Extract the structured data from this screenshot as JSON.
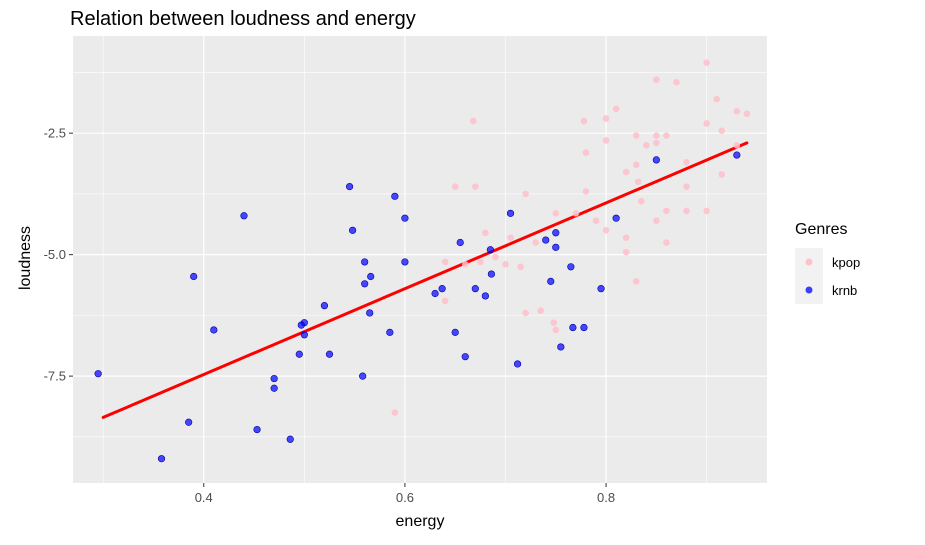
{
  "chart_data": {
    "type": "scatter",
    "title": "Relation between loudness and energy",
    "xlabel": "energy",
    "ylabel": "loudness",
    "xlim": [
      0.27,
      0.96
    ],
    "ylim": [
      -9.7,
      -0.5
    ],
    "x_ticks": [
      0.4,
      0.6,
      0.8
    ],
    "x_tick_labels": [
      "0.4",
      "0.6",
      "0.8"
    ],
    "y_ticks": [
      -2.5,
      -5.0,
      -7.5
    ],
    "y_tick_labels": [
      "-2.5",
      "-5.0",
      "-7.5"
    ],
    "grid": true,
    "legend": {
      "title": "Genres",
      "placement": "right"
    },
    "series": [
      {
        "name": "kpop",
        "color": "#ffc0cb",
        "points": [
          [
            0.85,
            -1.4
          ],
          [
            0.87,
            -1.45
          ],
          [
            0.9,
            -1.05
          ],
          [
            0.91,
            -1.8
          ],
          [
            0.93,
            -2.05
          ],
          [
            0.94,
            -2.1
          ],
          [
            0.81,
            -2.0
          ],
          [
            0.8,
            -2.2
          ],
          [
            0.778,
            -2.25
          ],
          [
            0.668,
            -2.25
          ],
          [
            0.9,
            -2.3
          ],
          [
            0.915,
            -2.45
          ],
          [
            0.85,
            -2.55
          ],
          [
            0.83,
            -2.55
          ],
          [
            0.86,
            -2.55
          ],
          [
            0.8,
            -2.65
          ],
          [
            0.84,
            -2.75
          ],
          [
            0.93,
            -2.75
          ],
          [
            0.85,
            -2.7
          ],
          [
            0.78,
            -2.9
          ],
          [
            0.83,
            -3.15
          ],
          [
            0.88,
            -3.1
          ],
          [
            0.82,
            -3.3
          ],
          [
            0.915,
            -3.35
          ],
          [
            0.832,
            -3.5
          ],
          [
            0.65,
            -3.6
          ],
          [
            0.67,
            -3.6
          ],
          [
            0.72,
            -3.75
          ],
          [
            0.78,
            -3.7
          ],
          [
            0.88,
            -3.6
          ],
          [
            0.77,
            -4.15
          ],
          [
            0.835,
            -3.9
          ],
          [
            0.75,
            -4.15
          ],
          [
            0.88,
            -4.1
          ],
          [
            0.86,
            -4.1
          ],
          [
            0.9,
            -4.1
          ],
          [
            0.79,
            -4.3
          ],
          [
            0.85,
            -4.3
          ],
          [
            0.8,
            -4.5
          ],
          [
            0.82,
            -4.65
          ],
          [
            0.86,
            -4.75
          ],
          [
            0.68,
            -4.55
          ],
          [
            0.705,
            -4.65
          ],
          [
            0.73,
            -4.75
          ],
          [
            0.64,
            -5.15
          ],
          [
            0.66,
            -5.2
          ],
          [
            0.675,
            -5.15
          ],
          [
            0.69,
            -5.05
          ],
          [
            0.7,
            -5.2
          ],
          [
            0.715,
            -5.25
          ],
          [
            0.82,
            -4.95
          ],
          [
            0.83,
            -5.55
          ],
          [
            0.64,
            -5.95
          ],
          [
            0.72,
            -6.2
          ],
          [
            0.735,
            -6.15
          ],
          [
            0.748,
            -6.4
          ],
          [
            0.59,
            -8.25
          ],
          [
            0.75,
            -6.55
          ]
        ]
      },
      {
        "name": "krnb",
        "color": "#0000ff",
        "points": [
          [
            0.93,
            -2.95
          ],
          [
            0.85,
            -3.05
          ],
          [
            0.545,
            -3.6
          ],
          [
            0.59,
            -3.8
          ],
          [
            0.705,
            -4.15
          ],
          [
            0.44,
            -4.2
          ],
          [
            0.6,
            -4.25
          ],
          [
            0.81,
            -4.25
          ],
          [
            0.548,
            -4.5
          ],
          [
            0.75,
            -4.55
          ],
          [
            0.74,
            -4.7
          ],
          [
            0.655,
            -4.75
          ],
          [
            0.75,
            -4.85
          ],
          [
            0.685,
            -4.9
          ],
          [
            0.56,
            -5.15
          ],
          [
            0.6,
            -5.15
          ],
          [
            0.765,
            -5.25
          ],
          [
            0.39,
            -5.45
          ],
          [
            0.686,
            -5.4
          ],
          [
            0.566,
            -5.45
          ],
          [
            0.56,
            -5.6
          ],
          [
            0.745,
            -5.55
          ],
          [
            0.67,
            -5.7
          ],
          [
            0.637,
            -5.7
          ],
          [
            0.795,
            -5.7
          ],
          [
            0.63,
            -5.8
          ],
          [
            0.68,
            -5.85
          ],
          [
            0.52,
            -6.05
          ],
          [
            0.565,
            -6.2
          ],
          [
            0.5,
            -6.4
          ],
          [
            0.497,
            -6.45
          ],
          [
            0.41,
            -6.55
          ],
          [
            0.767,
            -6.5
          ],
          [
            0.778,
            -6.5
          ],
          [
            0.585,
            -6.6
          ],
          [
            0.65,
            -6.6
          ],
          [
            0.5,
            -6.65
          ],
          [
            0.755,
            -6.9
          ],
          [
            0.525,
            -7.05
          ],
          [
            0.495,
            -7.05
          ],
          [
            0.66,
            -7.1
          ],
          [
            0.712,
            -7.25
          ],
          [
            0.295,
            -7.45
          ],
          [
            0.558,
            -7.5
          ],
          [
            0.47,
            -7.55
          ],
          [
            0.47,
            -7.75
          ],
          [
            0.385,
            -8.45
          ],
          [
            0.453,
            -8.6
          ],
          [
            0.486,
            -8.8
          ],
          [
            0.358,
            -9.2
          ]
        ]
      }
    ],
    "trend_line": {
      "color": "#ff0000",
      "from": [
        0.3,
        -8.35
      ],
      "to": [
        0.94,
        -2.7
      ]
    }
  }
}
